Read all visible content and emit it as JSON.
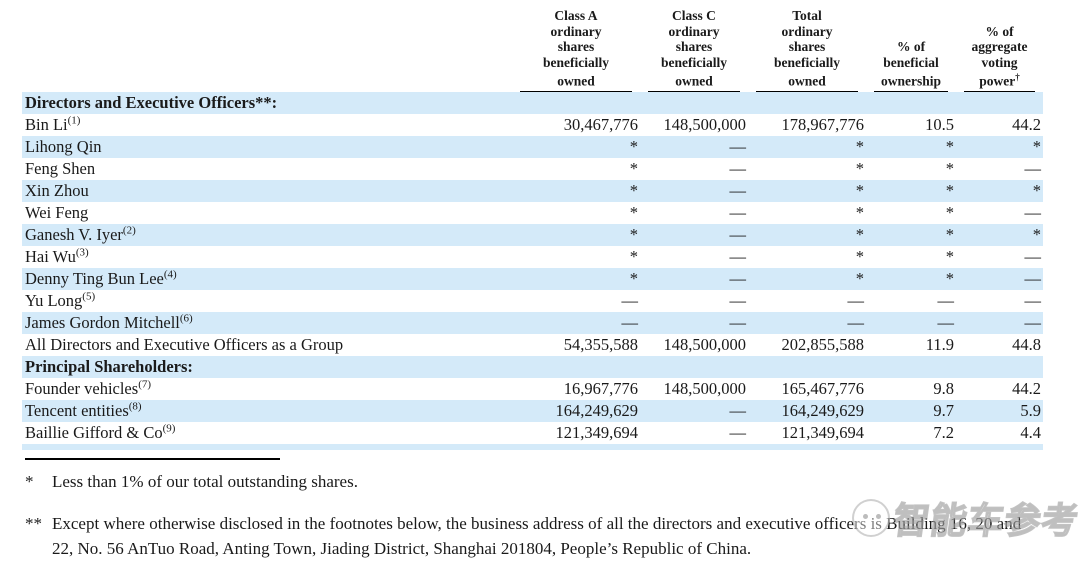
{
  "table": {
    "headers": [
      {
        "lines": "Class A\nordinary\nshares\nbeneficially\nowned"
      },
      {
        "lines": "Class C\nordinary\nshares\nbeneficially\nowned"
      },
      {
        "lines": "Total\nordinary\nshares\nbeneficially\nowned"
      },
      {
        "lines": "% of\nbeneficial\nownership"
      },
      {
        "lines": "% of\naggregate\nvoting\npower",
        "sup": "†"
      }
    ],
    "rows": [
      {
        "name": "Directors and Executive Officers**:",
        "style": "section",
        "class_a": "",
        "class_c": "",
        "total": "",
        "pct_ownership": "",
        "pct_voting": ""
      },
      {
        "name": "Bin Li",
        "sup": "(1)",
        "class_a": "30,467,776",
        "class_c": "148,500,000",
        "total": "178,967,776",
        "pct_ownership": "10.5",
        "pct_voting": "44.2"
      },
      {
        "name": "Lihong Qin",
        "class_a": "*",
        "class_c": "—",
        "total": "*",
        "pct_ownership": "*",
        "pct_voting": "*"
      },
      {
        "name": "Feng Shen",
        "class_a": "*",
        "class_c": "—",
        "total": "*",
        "pct_ownership": "*",
        "pct_voting": "—"
      },
      {
        "name": "Xin Zhou",
        "class_a": "*",
        "class_c": "—",
        "total": "*",
        "pct_ownership": "*",
        "pct_voting": "*"
      },
      {
        "name": "Wei Feng",
        "class_a": "*",
        "class_c": "—",
        "total": "*",
        "pct_ownership": "*",
        "pct_voting": "—"
      },
      {
        "name": "Ganesh V. Iyer",
        "sup": "(2)",
        "class_a": "*",
        "class_c": "—",
        "total": "*",
        "pct_ownership": "*",
        "pct_voting": "*"
      },
      {
        "name": "Hai Wu",
        "sup": "(3)",
        "class_a": "*",
        "class_c": "—",
        "total": "*",
        "pct_ownership": "*",
        "pct_voting": "—"
      },
      {
        "name": "Denny Ting Bun Lee",
        "sup": "(4)",
        "class_a": "*",
        "class_c": "—",
        "total": "*",
        "pct_ownership": "*",
        "pct_voting": "—"
      },
      {
        "name": "Yu Long",
        "sup": "(5)",
        "class_a": "—",
        "class_c": "—",
        "total": "—",
        "pct_ownership": "—",
        "pct_voting": "—"
      },
      {
        "name": "James Gordon Mitchell",
        "sup": "(6)",
        "class_a": "—",
        "class_c": "—",
        "total": "—",
        "pct_ownership": "—",
        "pct_voting": "—"
      },
      {
        "name": "All Directors and Executive Officers as a Group",
        "class_a": "54,355,588",
        "class_c": "148,500,000",
        "total": "202,855,588",
        "pct_ownership": "11.9",
        "pct_voting": "44.8"
      },
      {
        "name": "Principal Shareholders:",
        "style": "section",
        "class_a": "",
        "class_c": "",
        "total": "",
        "pct_ownership": "",
        "pct_voting": ""
      },
      {
        "name": "Founder vehicles",
        "sup": "(7)",
        "class_a": "16,967,776",
        "class_c": "148,500,000",
        "total": "165,467,776",
        "pct_ownership": "9.8",
        "pct_voting": "44.2"
      },
      {
        "name": "Tencent entities",
        "sup": "(8)",
        "class_a": "164,249,629",
        "class_c": "—",
        "total": "164,249,629",
        "pct_ownership": "9.7",
        "pct_voting": "5.9"
      },
      {
        "name": "Baillie Gifford & Co",
        "sup": "(9)",
        "class_a": "121,349,694",
        "class_c": "—",
        "total": "121,349,694",
        "pct_ownership": "7.2",
        "pct_voting": "4.4"
      }
    ]
  },
  "footnotes": [
    {
      "marker": "*",
      "text": "Less than 1% of our total outstanding shares."
    },
    {
      "marker": "**",
      "text": "Except where otherwise disclosed in the footnotes below, the business address of all the directors and executive officers is Building 16, 20 and 22, No. 56 AnTuo Road, Anting Town, Jiading District, Shanghai 201804, People’s Republic of China."
    }
  ],
  "watermark": {
    "text": "智能车参考"
  },
  "colors": {
    "row_shade": "#d4eaf9",
    "text": "#1a1a1a",
    "rule": "#000000"
  }
}
